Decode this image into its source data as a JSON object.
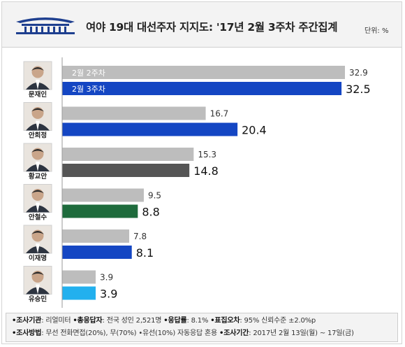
{
  "header": {
    "title": "여야 19대 대선주자 지지도: '17년 2월 3주차 주간집계",
    "unit": "단위: %"
  },
  "colors": {
    "previous": "#bdbdbd",
    "header_bg": "#f3f3f3",
    "logo": "#1e3f8f"
  },
  "chart_data": {
    "type": "bar",
    "orientation": "horizontal",
    "title": "여야 19대 대선주자 지지도: '17년 2월 3주차 주간집계",
    "unit": "%",
    "xlim": [
      0,
      35
    ],
    "categories": [
      "문재인",
      "안희정",
      "황교안",
      "안철수",
      "이재명",
      "유승민"
    ],
    "series": [
      {
        "name": "2월 2주차",
        "values": [
          32.9,
          16.7,
          15.3,
          9.5,
          7.8,
          3.9
        ],
        "color": "#bdbdbd"
      },
      {
        "name": "2월 3주차",
        "values": [
          32.5,
          20.4,
          14.8,
          8.8,
          8.1,
          3.9
        ],
        "colors": [
          "#1446c3",
          "#1446c3",
          "#555555",
          "#1e6b3c",
          "#1446c3",
          "#22b0ee"
        ]
      }
    ],
    "candidate_icons": [
      "portrait-icon",
      "portrait-icon",
      "portrait-icon",
      "portrait-icon",
      "portrait-icon",
      "portrait-icon"
    ]
  },
  "footer": {
    "line1": [
      {
        "label": "•조사기관",
        "text": ": 리얼미터 "
      },
      {
        "label": "•총응답자",
        "text": ": 전국 성인 2,521명 "
      },
      {
        "label": "•응답률",
        "text": ": 8.1% "
      },
      {
        "label": "•표집오차",
        "text": ": 95% 신뢰수준 ±2.0%p"
      }
    ],
    "line2": [
      {
        "label": "•조사방법",
        "text": ": 무선 전화면접(20%), 무(70%) •유선(10%) 자동응답 혼용 "
      },
      {
        "label": "•조사기간",
        "text": ": 2017년 2월 13일(월) ~ 17일(금)"
      }
    ]
  }
}
